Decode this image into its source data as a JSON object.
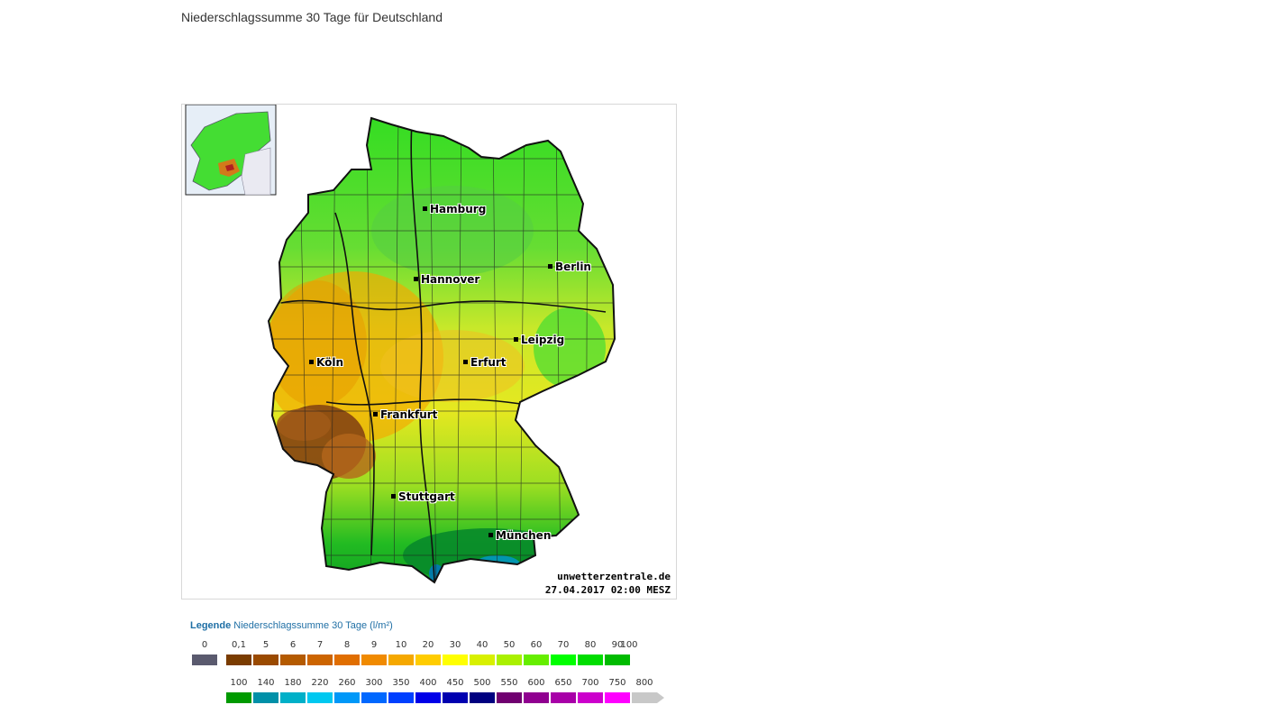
{
  "page": {
    "title": "Niederschlagssumme 30 Tage für Deutschland"
  },
  "map": {
    "credit_site": "unwetterzentrale.de",
    "credit_time": "27.04.2017 02:00 MESZ",
    "cities": [
      {
        "name": "Hamburg"
      },
      {
        "name": "Berlin"
      },
      {
        "name": "Hannover"
      },
      {
        "name": "Leipzig"
      },
      {
        "name": "Erfurt"
      },
      {
        "name": "Köln"
      },
      {
        "name": "Frankfurt"
      },
      {
        "name": "Stuttgart"
      },
      {
        "name": "München"
      }
    ]
  },
  "legend": {
    "title_bold": "Legende",
    "title_rest": "Niederschlagssumme 30 Tage  (l/m²)",
    "row1": [
      {
        "label": "0",
        "color": "#5a5a6e"
      },
      {
        "label": "0,1",
        "color": "#7a3c00"
      },
      {
        "label": "5",
        "color": "#9a4a00"
      },
      {
        "label": "6",
        "color": "#b45a00"
      },
      {
        "label": "7",
        "color": "#cc6400"
      },
      {
        "label": "8",
        "color": "#e06e00"
      },
      {
        "label": "9",
        "color": "#f08a00"
      },
      {
        "label": "10",
        "color": "#f5a800"
      },
      {
        "label": "20",
        "color": "#ffcc00"
      },
      {
        "label": "30",
        "color": "#ffff00"
      },
      {
        "label": "40",
        "color": "#d8f000"
      },
      {
        "label": "50",
        "color": "#aaf000"
      },
      {
        "label": "60",
        "color": "#66ee00"
      },
      {
        "label": "70",
        "color": "#00ff00"
      },
      {
        "label": "80",
        "color": "#00dd00"
      },
      {
        "label": "90",
        "color": "#00bb00"
      },
      {
        "label": "100",
        "color": ""
      }
    ],
    "row2": [
      {
        "label": "100",
        "color": "#009a00"
      },
      {
        "label": "140",
        "color": "#0090a8"
      },
      {
        "label": "180",
        "color": "#00b0c8"
      },
      {
        "label": "220",
        "color": "#00c8f0"
      },
      {
        "label": "260",
        "color": "#0098f8"
      },
      {
        "label": "300",
        "color": "#0068ff"
      },
      {
        "label": "350",
        "color": "#0040ff"
      },
      {
        "label": "400",
        "color": "#0000e8"
      },
      {
        "label": "450",
        "color": "#0000b0"
      },
      {
        "label": "500",
        "color": "#000080"
      },
      {
        "label": "550",
        "color": "#700070"
      },
      {
        "label": "600",
        "color": "#900090"
      },
      {
        "label": "650",
        "color": "#a800a8"
      },
      {
        "label": "700",
        "color": "#cc00cc"
      },
      {
        "label": "750",
        "color": "#ff00ff"
      },
      {
        "label": "800",
        "color": "#c8c8c8"
      }
    ]
  }
}
